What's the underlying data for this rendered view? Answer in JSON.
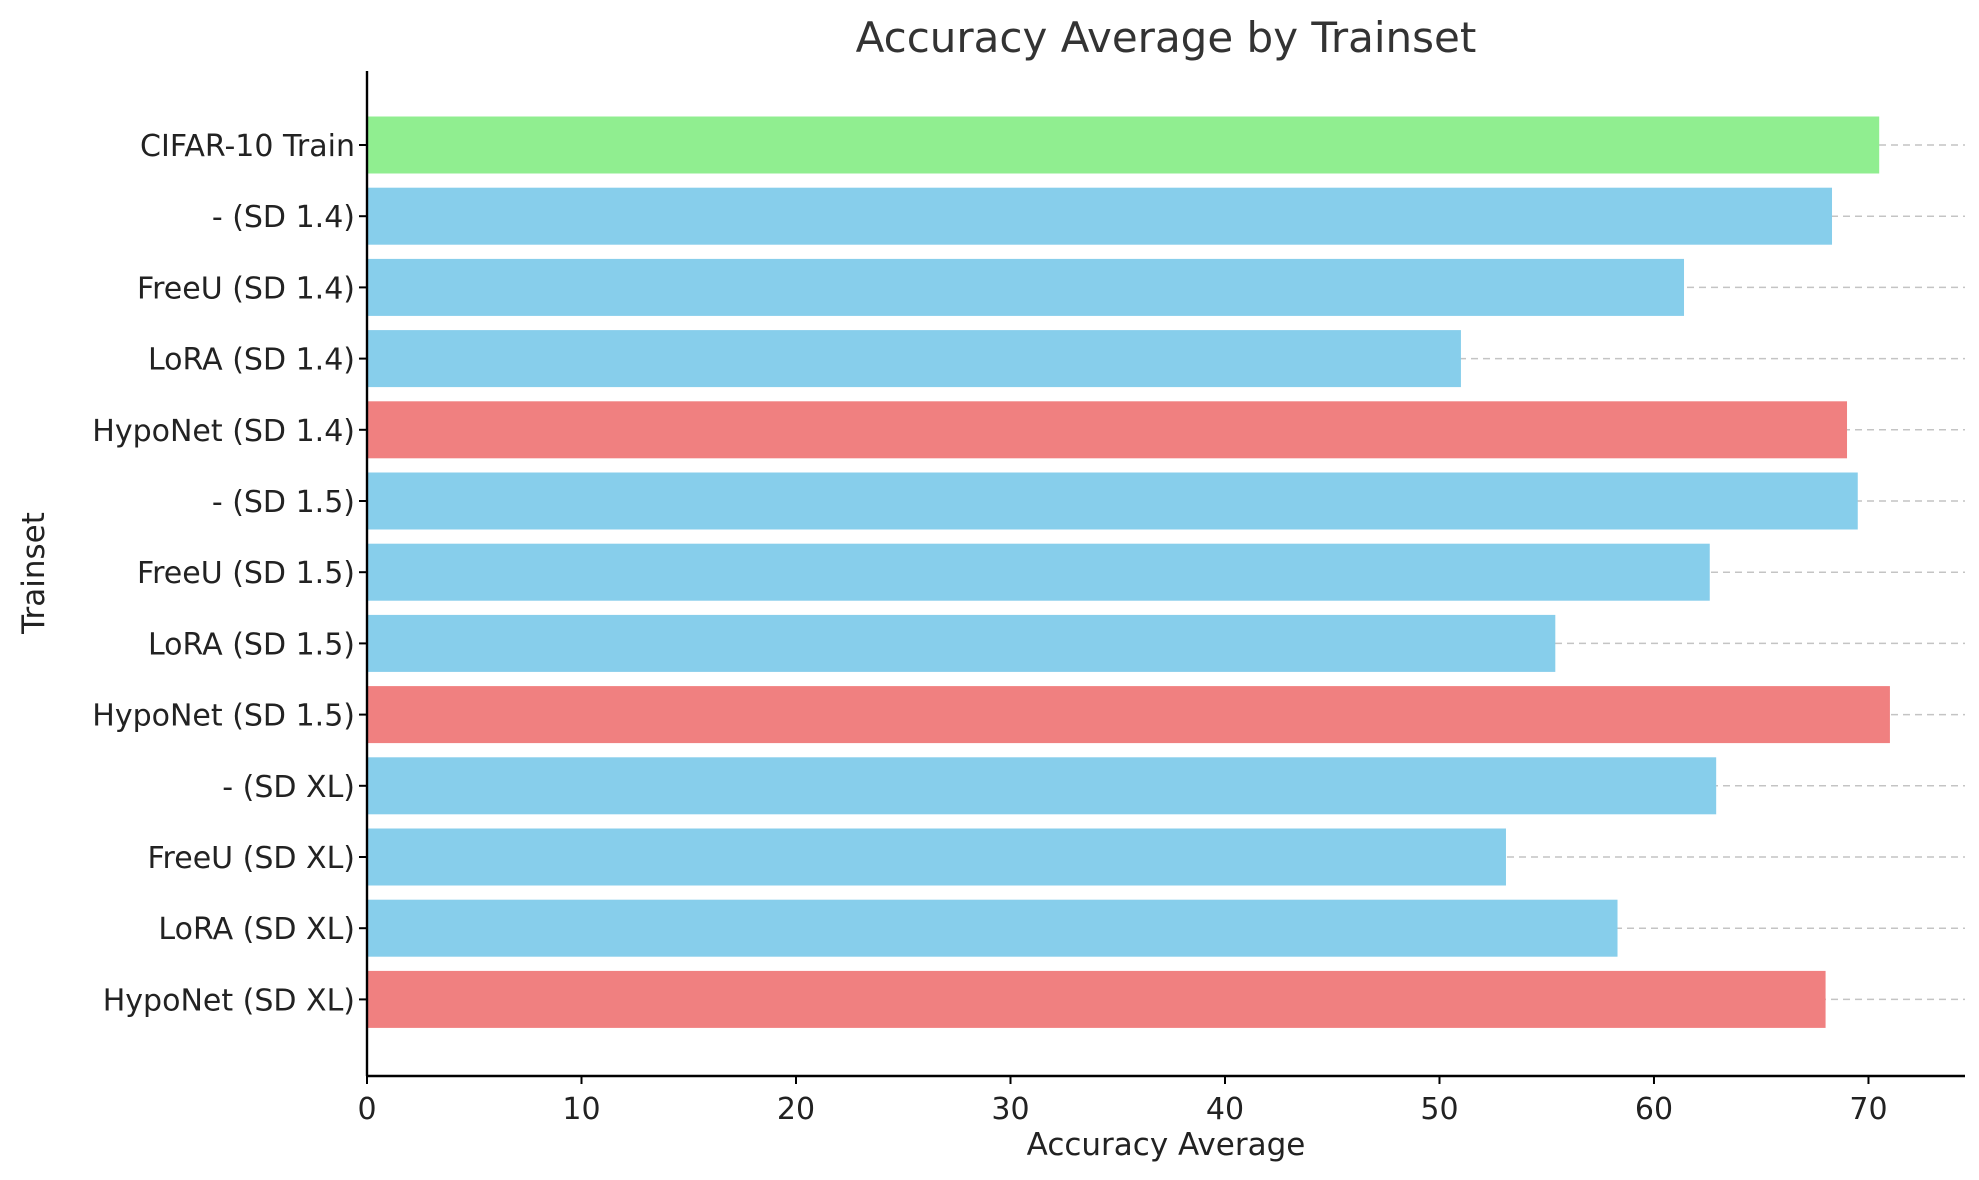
{
  "chart_data": {
    "type": "bar",
    "orientation": "horizontal",
    "title": "Accuracy Average by Trainset",
    "xlabel": "Accuracy Average",
    "ylabel": "Trainset",
    "xlim": [
      0,
      74.5
    ],
    "xticks": [
      0,
      10,
      20,
      30,
      40,
      50,
      60,
      70
    ],
    "grid": "horizontal dashed",
    "categories": [
      "CIFAR-10 Train",
      "- (SD 1.4)",
      "FreeU (SD 1.4)",
      "LoRA (SD 1.4)",
      "HypoNet (SD 1.4)",
      "- (SD 1.5)",
      "FreeU (SD 1.5)",
      "LoRA (SD 1.5)",
      "HypoNet (SD 1.5)",
      "- (SD XL)",
      "FreeU (SD XL)",
      "LoRA (SD XL)",
      "HypoNet (SD XL)"
    ],
    "values": [
      70.5,
      68.3,
      61.4,
      51.0,
      69.0,
      69.5,
      62.6,
      55.4,
      71.0,
      62.9,
      53.1,
      58.3,
      68.0
    ],
    "colors": [
      "#90EE90",
      "#87CEEB",
      "#87CEEB",
      "#87CEEB",
      "#F08080",
      "#87CEEB",
      "#87CEEB",
      "#87CEEB",
      "#F08080",
      "#87CEEB",
      "#87CEEB",
      "#87CEEB",
      "#F08080"
    ]
  }
}
